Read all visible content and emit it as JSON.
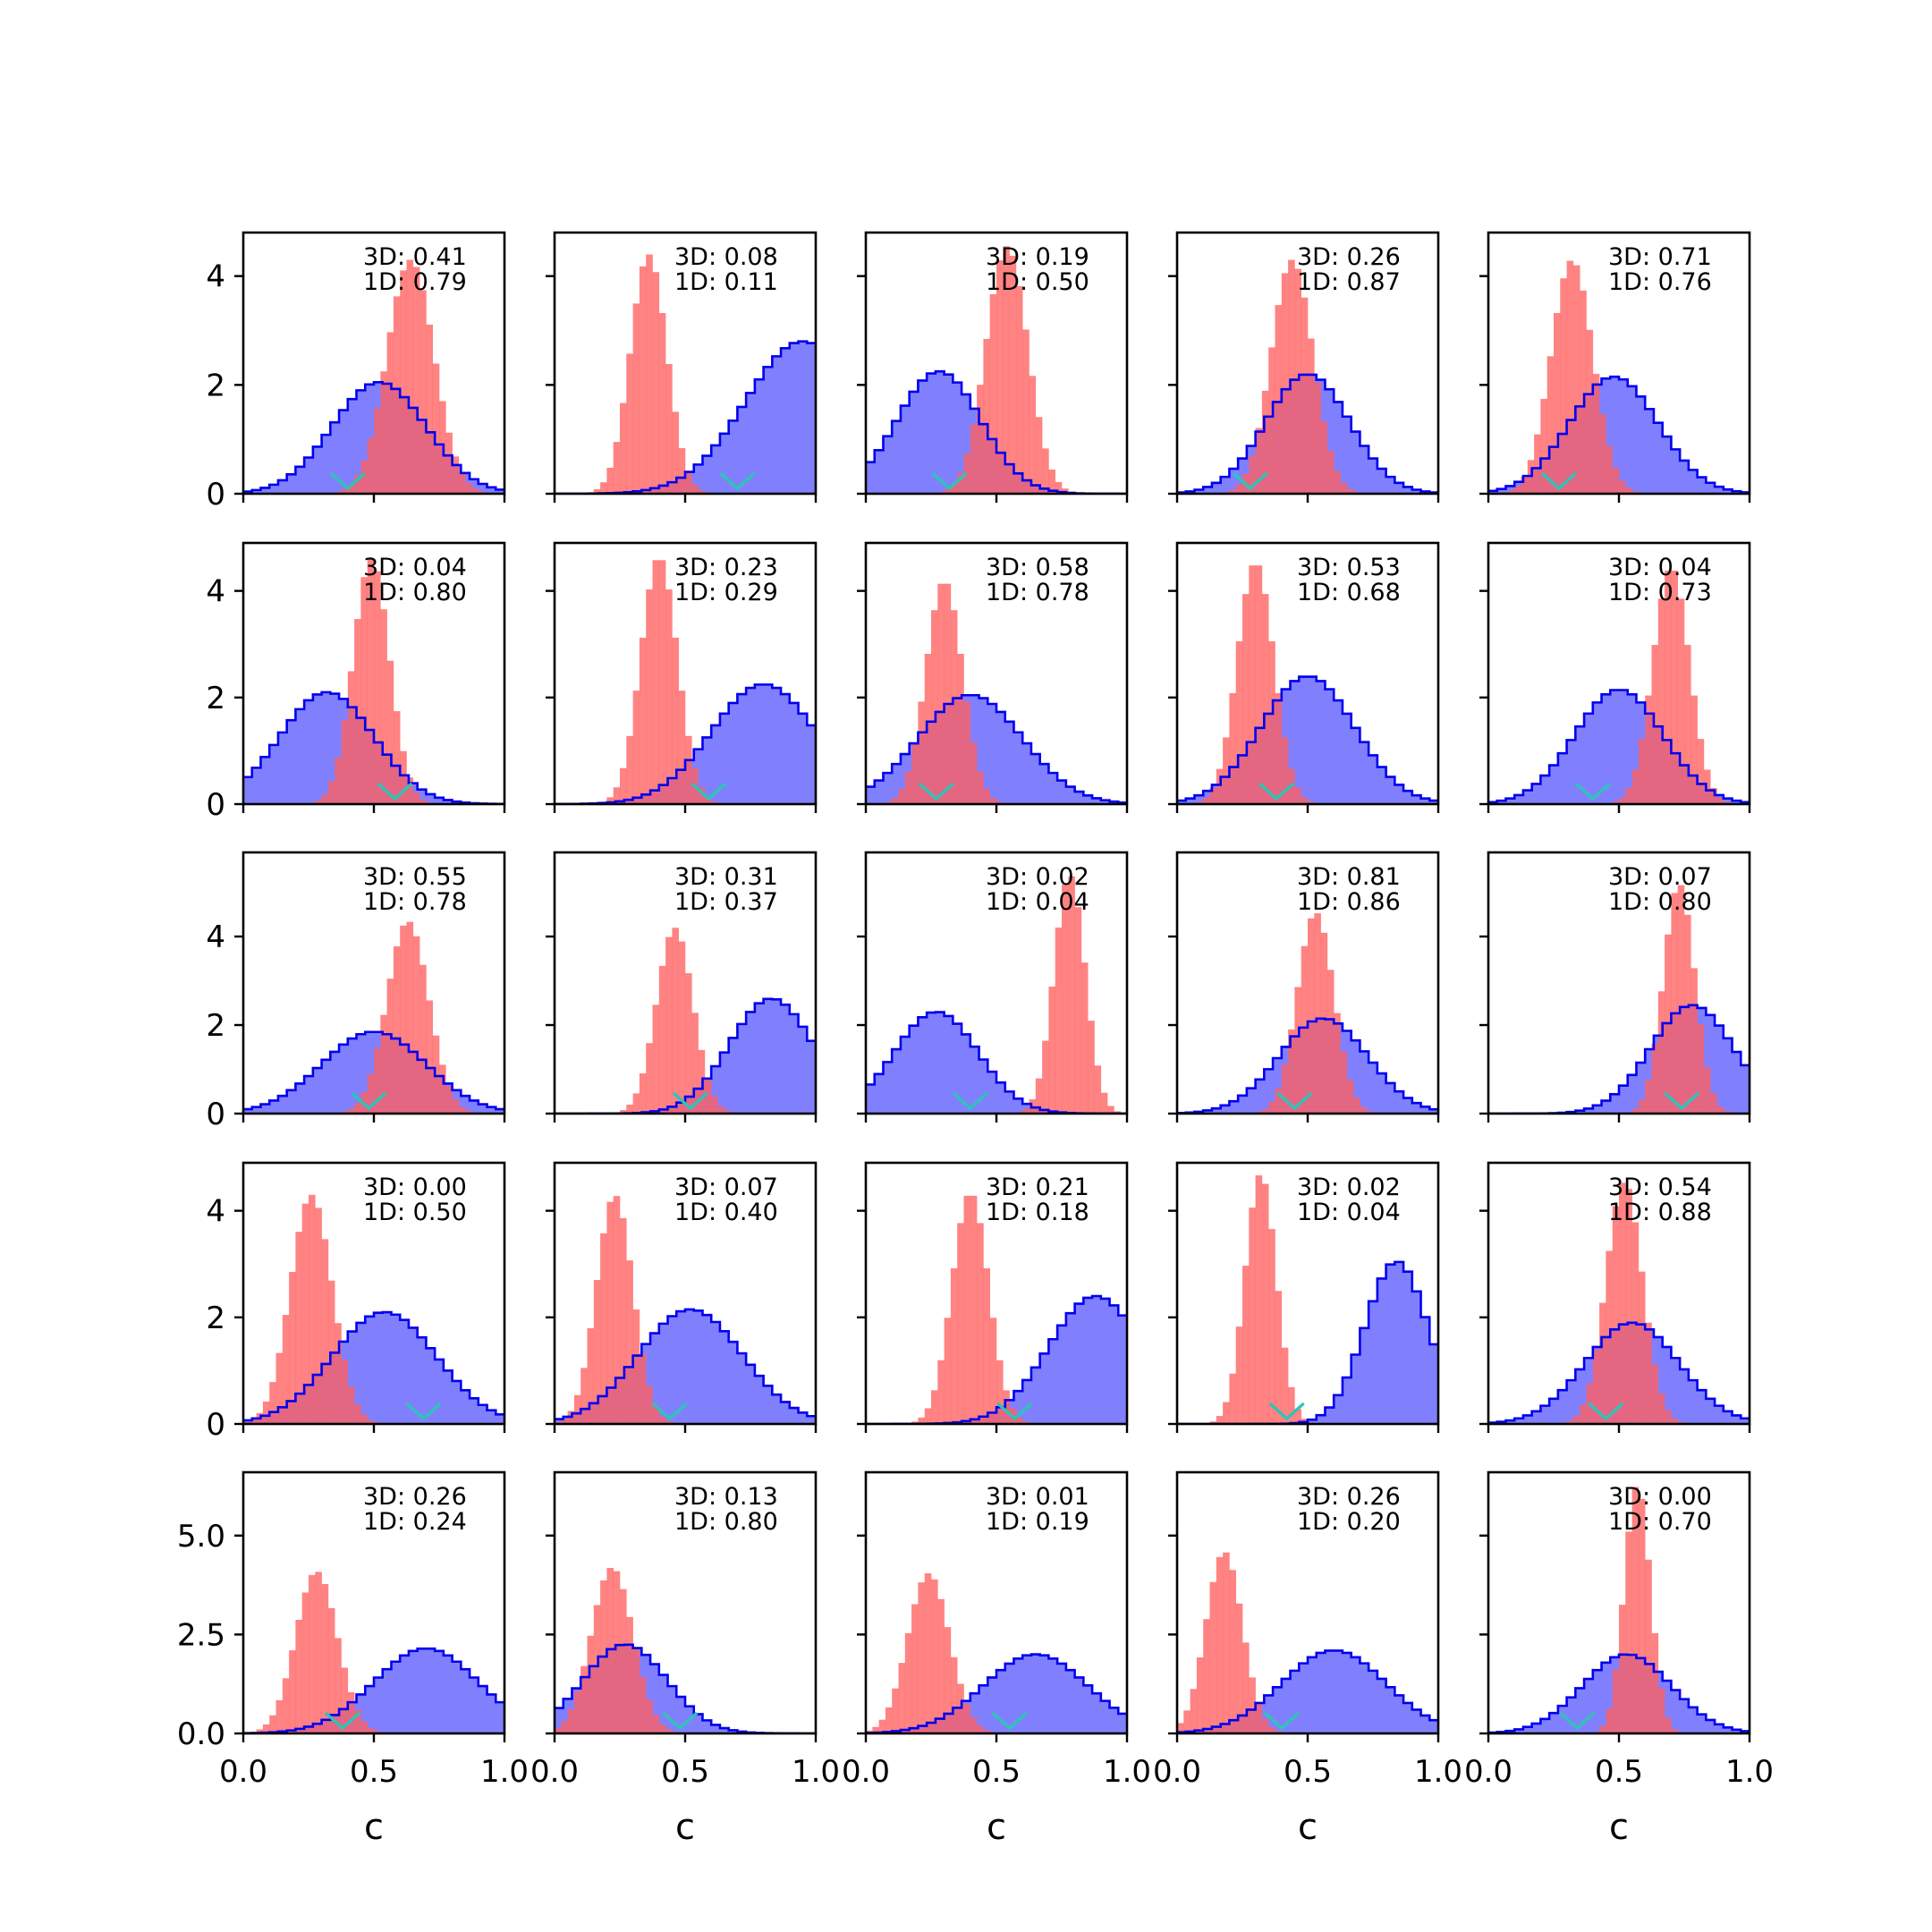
{
  "chart_data": {
    "type": "histogram-grid",
    "rows": 5,
    "cols": 5,
    "xlabel": "c",
    "xlim": [
      0,
      1
    ],
    "x_ticks": [
      "0.0",
      "0.5",
      "1.0"
    ],
    "row_y": [
      {
        "ylim": [
          0,
          4.8
        ],
        "ticks": [
          0,
          2,
          4
        ],
        "tick_labels": [
          "0",
          "2",
          "4"
        ]
      },
      {
        "ylim": [
          0,
          4.9
        ],
        "ticks": [
          0,
          2,
          4
        ],
        "tick_labels": [
          "0",
          "2",
          "4"
        ]
      },
      {
        "ylim": [
          0,
          5.9
        ],
        "ticks": [
          0,
          2,
          4
        ],
        "tick_labels": [
          "0",
          "2",
          "4"
        ]
      },
      {
        "ylim": [
          0,
          4.9
        ],
        "ticks": [
          0,
          2,
          4
        ],
        "tick_labels": [
          "0",
          "2",
          "4"
        ]
      },
      {
        "ylim": [
          0,
          6.6
        ],
        "ticks": [
          0,
          2.5,
          5.0
        ],
        "tick_labels": [
          "0.0",
          "2.5",
          "5.0"
        ]
      }
    ],
    "colors": {
      "blue_fill": "#8080ff",
      "blue_edge": "#0000ee",
      "red": "#ff6060",
      "marker": "#2ec4b6"
    },
    "panels": [
      {
        "row": 0,
        "col": 0,
        "label_3d": "3D: 0.41",
        "label_1d": "1D: 0.79",
        "blue": {
          "mu": 0.52,
          "sd": 0.18,
          "peak": 2.05
        },
        "red": {
          "mu": 0.64,
          "sd": 0.09,
          "peak": 4.3
        },
        "marker_x": 0.4
      },
      {
        "row": 0,
        "col": 1,
        "label_3d": "3D: 0.08",
        "label_1d": "1D: 0.11",
        "blue": {
          "mu": 0.95,
          "sd": 0.22,
          "peak": 2.8
        },
        "red": {
          "mu": 0.36,
          "sd": 0.07,
          "peak": 4.4
        },
        "marker_x": 0.7
      },
      {
        "row": 0,
        "col": 2,
        "label_3d": "3D: 0.19",
        "label_1d": "1D: 0.50",
        "blue": {
          "mu": 0.28,
          "sd": 0.16,
          "peak": 2.25
        },
        "red": {
          "mu": 0.54,
          "sd": 0.08,
          "peak": 4.55
        },
        "marker_x": 0.32
      },
      {
        "row": 0,
        "col": 3,
        "label_3d": "3D: 0.26",
        "label_1d": "1D: 0.87",
        "blue": {
          "mu": 0.5,
          "sd": 0.16,
          "peak": 2.2
        },
        "red": {
          "mu": 0.44,
          "sd": 0.08,
          "peak": 4.3
        },
        "marker_x": 0.28
      },
      {
        "row": 0,
        "col": 4,
        "label_3d": "3D: 0.71",
        "label_1d": "1D: 0.76",
        "blue": {
          "mu": 0.48,
          "sd": 0.17,
          "peak": 2.15
        },
        "red": {
          "mu": 0.32,
          "sd": 0.08,
          "peak": 4.3
        },
        "marker_x": 0.27
      },
      {
        "row": 1,
        "col": 0,
        "label_3d": "3D: 0.04",
        "label_1d": "1D: 0.80",
        "blue": {
          "mu": 0.32,
          "sd": 0.18,
          "peak": 2.1
        },
        "red": {
          "mu": 0.49,
          "sd": 0.07,
          "peak": 4.6
        },
        "marker_x": 0.58
      },
      {
        "row": 1,
        "col": 1,
        "label_3d": "3D: 0.23",
        "label_1d": "1D: 0.29",
        "blue": {
          "mu": 0.8,
          "sd": 0.2,
          "peak": 2.25
        },
        "red": {
          "mu": 0.4,
          "sd": 0.07,
          "peak": 4.65
        },
        "marker_x": 0.59
      },
      {
        "row": 1,
        "col": 2,
        "label_3d": "3D: 0.58",
        "label_1d": "1D: 0.78",
        "blue": {
          "mu": 0.4,
          "sd": 0.2,
          "peak": 2.05
        },
        "red": {
          "mu": 0.3,
          "sd": 0.07,
          "peak": 4.2
        },
        "marker_x": 0.27
      },
      {
        "row": 1,
        "col": 3,
        "label_3d": "3D: 0.53",
        "label_1d": "1D: 0.68",
        "blue": {
          "mu": 0.5,
          "sd": 0.18,
          "peak": 2.4
        },
        "red": {
          "mu": 0.3,
          "sd": 0.07,
          "peak": 4.55
        },
        "marker_x": 0.38
      },
      {
        "row": 1,
        "col": 4,
        "label_3d": "3D: 0.04",
        "label_1d": "1D: 0.73",
        "blue": {
          "mu": 0.5,
          "sd": 0.17,
          "peak": 2.15
        },
        "red": {
          "mu": 0.7,
          "sd": 0.07,
          "peak": 4.45
        },
        "marker_x": 0.4
      },
      {
        "row": 2,
        "col": 0,
        "label_3d": "3D: 0.55",
        "label_1d": "1D: 0.78",
        "blue": {
          "mu": 0.5,
          "sd": 0.2,
          "peak": 1.85
        },
        "red": {
          "mu": 0.63,
          "sd": 0.08,
          "peak": 4.35
        },
        "marker_x": 0.48
      },
      {
        "row": 2,
        "col": 1,
        "label_3d": "3D: 0.31",
        "label_1d": "1D: 0.37",
        "blue": {
          "mu": 0.83,
          "sd": 0.16,
          "peak": 2.6
        },
        "red": {
          "mu": 0.46,
          "sd": 0.07,
          "peak": 4.2
        },
        "marker_x": 0.52
      },
      {
        "row": 2,
        "col": 2,
        "label_3d": "3D: 0.02",
        "label_1d": "1D: 0.04",
        "blue": {
          "mu": 0.27,
          "sd": 0.16,
          "peak": 2.3
        },
        "red": {
          "mu": 0.78,
          "sd": 0.06,
          "peak": 5.4
        },
        "marker_x": 0.4
      },
      {
        "row": 2,
        "col": 3,
        "label_3d": "3D: 0.81",
        "label_1d": "1D: 0.86",
        "blue": {
          "mu": 0.56,
          "sd": 0.17,
          "peak": 2.15
        },
        "red": {
          "mu": 0.53,
          "sd": 0.07,
          "peak": 4.55
        },
        "marker_x": 0.45
      },
      {
        "row": 2,
        "col": 4,
        "label_3d": "3D: 0.07",
        "label_1d": "1D: 0.80",
        "blue": {
          "mu": 0.78,
          "sd": 0.16,
          "peak": 2.45
        },
        "red": {
          "mu": 0.73,
          "sd": 0.06,
          "peak": 5.2
        },
        "marker_x": 0.74
      },
      {
        "row": 3,
        "col": 0,
        "label_3d": "3D: 0.00",
        "label_1d": "1D: 0.50",
        "blue": {
          "mu": 0.54,
          "sd": 0.2,
          "peak": 2.1
        },
        "red": {
          "mu": 0.26,
          "sd": 0.08,
          "peak": 4.3
        },
        "marker_x": 0.69
      },
      {
        "row": 3,
        "col": 1,
        "label_3d": "3D: 0.07",
        "label_1d": "1D: 0.40",
        "blue": {
          "mu": 0.52,
          "sd": 0.2,
          "peak": 2.15
        },
        "red": {
          "mu": 0.23,
          "sd": 0.07,
          "peak": 4.3
        },
        "marker_x": 0.44
      },
      {
        "row": 3,
        "col": 2,
        "label_3d": "3D: 0.21",
        "label_1d": "1D: 0.18",
        "blue": {
          "mu": 0.88,
          "sd": 0.18,
          "peak": 2.4
        },
        "red": {
          "mu": 0.4,
          "sd": 0.07,
          "peak": 4.35
        },
        "marker_x": 0.57
      },
      {
        "row": 3,
        "col": 3,
        "label_3d": "3D: 0.02",
        "label_1d": "1D: 0.04",
        "blue": {
          "mu": 0.84,
          "sd": 0.12,
          "peak": 3.05
        },
        "red": {
          "mu": 0.32,
          "sd": 0.06,
          "peak": 4.7
        },
        "marker_x": 0.42
      },
      {
        "row": 3,
        "col": 4,
        "label_3d": "3D: 0.54",
        "label_1d": "1D: 0.88",
        "blue": {
          "mu": 0.55,
          "sd": 0.18,
          "peak": 1.9
        },
        "red": {
          "mu": 0.52,
          "sd": 0.07,
          "peak": 4.55
        },
        "marker_x": 0.45
      },
      {
        "row": 4,
        "col": 0,
        "label_3d": "3D: 0.26",
        "label_1d": "1D: 0.24",
        "blue": {
          "mu": 0.7,
          "sd": 0.2,
          "peak": 2.15
        },
        "red": {
          "mu": 0.28,
          "sd": 0.08,
          "peak": 4.1
        },
        "marker_x": 0.38
      },
      {
        "row": 4,
        "col": 1,
        "label_3d": "3D: 0.13",
        "label_1d": "1D: 0.80",
        "blue": {
          "mu": 0.27,
          "sd": 0.16,
          "peak": 2.25
        },
        "red": {
          "mu": 0.22,
          "sd": 0.08,
          "peak": 4.2
        },
        "marker_x": 0.48
      },
      {
        "row": 4,
        "col": 2,
        "label_3d": "3D: 0.01",
        "label_1d": "1D: 0.19",
        "blue": {
          "mu": 0.65,
          "sd": 0.2,
          "peak": 2.0
        },
        "red": {
          "mu": 0.24,
          "sd": 0.08,
          "peak": 4.05
        },
        "marker_x": 0.55
      },
      {
        "row": 4,
        "col": 3,
        "label_3d": "3D: 0.26",
        "label_1d": "1D: 0.20",
        "blue": {
          "mu": 0.6,
          "sd": 0.2,
          "peak": 2.1
        },
        "red": {
          "mu": 0.18,
          "sd": 0.07,
          "peak": 4.6
        },
        "marker_x": 0.4
      },
      {
        "row": 4,
        "col": 4,
        "label_3d": "3D: 0.00",
        "label_1d": "1D: 0.70",
        "blue": {
          "mu": 0.53,
          "sd": 0.17,
          "peak": 2.0
        },
        "red": {
          "mu": 0.57,
          "sd": 0.05,
          "peak": 6.3
        },
        "marker_x": 0.34
      }
    ]
  }
}
